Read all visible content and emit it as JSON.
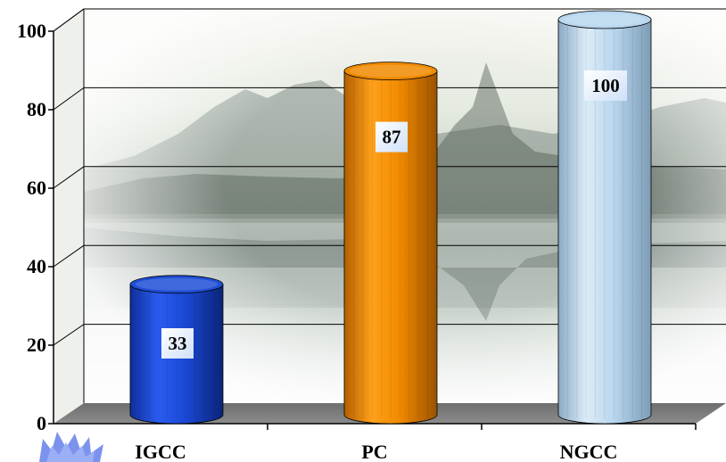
{
  "chart_data": {
    "type": "bar",
    "style": "3d-cylinder",
    "categories": [
      "IGCC",
      "PC",
      "NGCC"
    ],
    "values": [
      33,
      87,
      100
    ],
    "data_labels": [
      "33",
      "87",
      "100"
    ],
    "bar_colors": [
      "#1f4fd6",
      "#f08a00",
      "#b8d6ee"
    ],
    "ylim": [
      0,
      100
    ],
    "yticks": [
      0,
      20,
      40,
      60,
      80,
      100
    ],
    "grid": true,
    "title": "",
    "xlabel": "",
    "ylabel": "",
    "background": "landscape photo with mountains, trees and lake reflection"
  }
}
